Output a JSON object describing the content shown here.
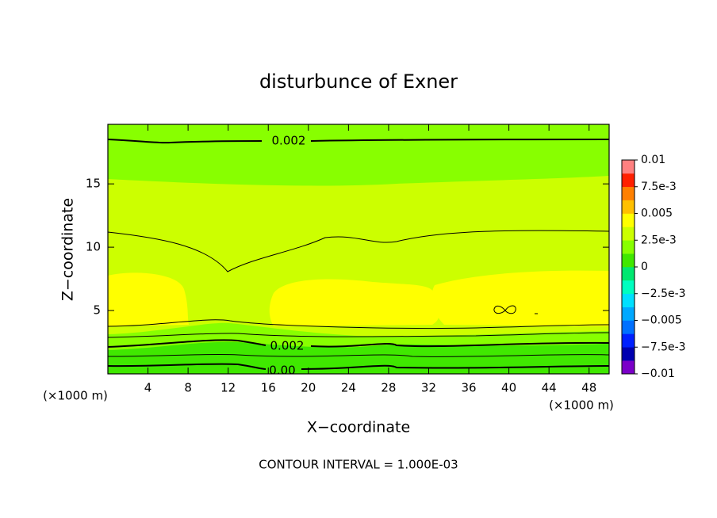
{
  "chart_data": {
    "type": "contour",
    "title": "disturbunce of Exner",
    "x_label": "X−coordinate",
    "y_label": "Z−coordinate",
    "x_unit_label": "(×1000 m)",
    "x_unit_label_right": "(×1000 m)",
    "xlim": [
      0,
      50
    ],
    "xticks": [
      4,
      8,
      12,
      16,
      20,
      24,
      28,
      32,
      36,
      40,
      44,
      48
    ],
    "ylim": [
      0,
      19.7
    ],
    "yticks": [
      5,
      10,
      15
    ],
    "colorbar_lim": [
      -0.01,
      0.01
    ],
    "colorbar_ticks": [
      {
        "value": -0.01,
        "label": "−0.01"
      },
      {
        "value": -0.0075,
        "label": "−7.5e-3"
      },
      {
        "value": -0.005,
        "label": "−0.005"
      },
      {
        "value": -0.0025,
        "label": "−2.5e-3"
      },
      0,
      {
        "value": 0.0025,
        "label": "2.5e-3"
      },
      0.005,
      {
        "value": 0.0075,
        "label": "7.5e-3"
      },
      0.01
    ],
    "colors": [
      "#7b00c8",
      "#0000b0",
      "#0020ff",
      "#0070ff",
      "#00a8ff",
      "#00e0ff",
      "#00ffc0",
      "#00e870",
      "#40e800",
      "#88ff00",
      "#ccff00",
      "#ffff00",
      "#ffc000",
      "#ff8000",
      "#ff2000",
      "#ff8080"
    ],
    "contour_labels": [
      0.002,
      0.002,
      {
        "value": 0,
        "label": "0.00"
      }
    ],
    "note": "CONTOUR INTERVAL = 1.000E-03"
  }
}
